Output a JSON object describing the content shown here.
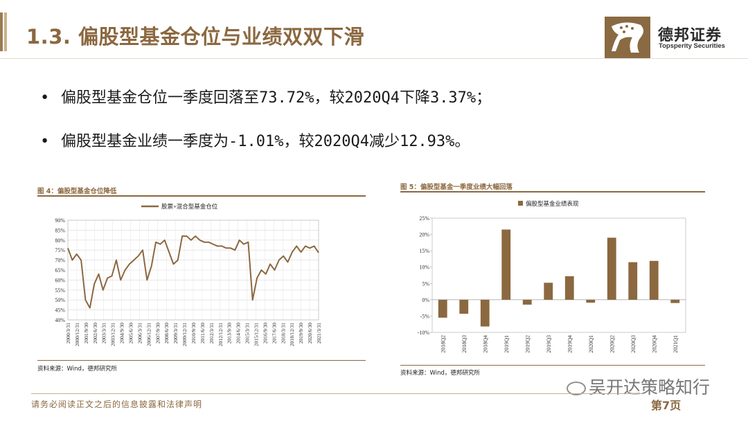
{
  "header": {
    "title": "1.3. 偏股型基金仓位与业绩双双下滑",
    "logo_name": "德邦证券",
    "logo_sub": "Topsperity Securities",
    "logo_icon": "leopard-logo-icon"
  },
  "bullets": [
    "偏股型基金仓位一季度回落至73.72%，较2020Q4下降3.37%；",
    "偏股型基金业绩一季度为-1.01%，较2020Q4减少12.93%。"
  ],
  "figure4": {
    "caption": "图 4：偏股型基金仓位降低",
    "source": "资料来源：Wind，德邦研究所"
  },
  "figure5": {
    "caption": "图 5：偏股型基金一季度业绩大幅回落",
    "source": "资料来源：Wind，德邦研究所"
  },
  "chart_data": [
    {
      "type": "line",
      "series": [
        {
          "name": "股票+混合型基金仓位",
          "values": [
            76,
            70,
            73,
            70,
            50,
            46,
            58,
            63,
            55,
            61,
            62,
            70,
            60,
            65,
            68,
            70,
            72,
            75,
            60,
            67,
            79,
            78,
            80,
            74,
            68,
            70,
            82,
            82,
            80,
            82,
            80,
            79,
            79,
            78,
            77,
            77,
            76,
            76,
            75,
            80,
            78,
            79,
            50,
            61,
            65,
            63,
            68,
            65,
            70,
            72,
            69,
            74,
            77,
            74,
            77,
            76,
            77,
            73.72
          ],
          "color": "#8b6840"
        }
      ],
      "x_tick_labels": [
        "2000/3/31",
        "2000/12/31",
        "2001/9/30",
        "2002/6/30",
        "2003/3/31",
        "2003/12/31",
        "2004/9/30",
        "2005/6/30",
        "2006/3/31",
        "2006/12/31",
        "2007/9/30",
        "2008/6/30",
        "2009/3/31",
        "2009/12/31",
        "2010/9/30",
        "2011/6/30",
        "2012/3/31",
        "2012/12/31",
        "2013/9/30",
        "2014/6/30",
        "2015/3/31",
        "2015/12/31",
        "2016/9/30",
        "2017/6/30",
        "2018/3/31",
        "2018/12/31",
        "2019/9/30",
        "2020/6/30",
        "2021/3/31"
      ],
      "y_tick_labels": [
        "40%",
        "45%",
        "50%",
        "55%",
        "60%",
        "65%",
        "70%",
        "75%",
        "80%",
        "85%",
        "90%"
      ],
      "ylim": [
        40,
        90
      ],
      "grid": true,
      "legend_position": "top"
    },
    {
      "type": "bar",
      "categories": [
        "2018Q2",
        "2018Q3",
        "2018Q4",
        "2019Q1",
        "2019Q2",
        "2019Q3",
        "2019Q4",
        "2020Q1",
        "2020Q2",
        "2020Q3",
        "2020Q4",
        "2021Q1"
      ],
      "series": [
        {
          "name": "偏股型基金业绩表现",
          "values": [
            -5.5,
            -4.3,
            -8.2,
            21.5,
            -1.5,
            5.2,
            7.2,
            -0.9,
            19.0,
            11.5,
            11.9,
            -1.01
          ],
          "color": "#8b6840"
        }
      ],
      "y_tick_labels": [
        "-10%",
        "-5%",
        "0%",
        "5%",
        "10%",
        "15%",
        "20%",
        "25%"
      ],
      "ylim": [
        -10,
        25
      ],
      "grid": false,
      "legend_position": "top"
    }
  ],
  "footer": {
    "disclaimer": "请务必阅读正文之后的信息披露和法律声明",
    "page": "第7页",
    "watermark": "吴开达策略知行"
  }
}
